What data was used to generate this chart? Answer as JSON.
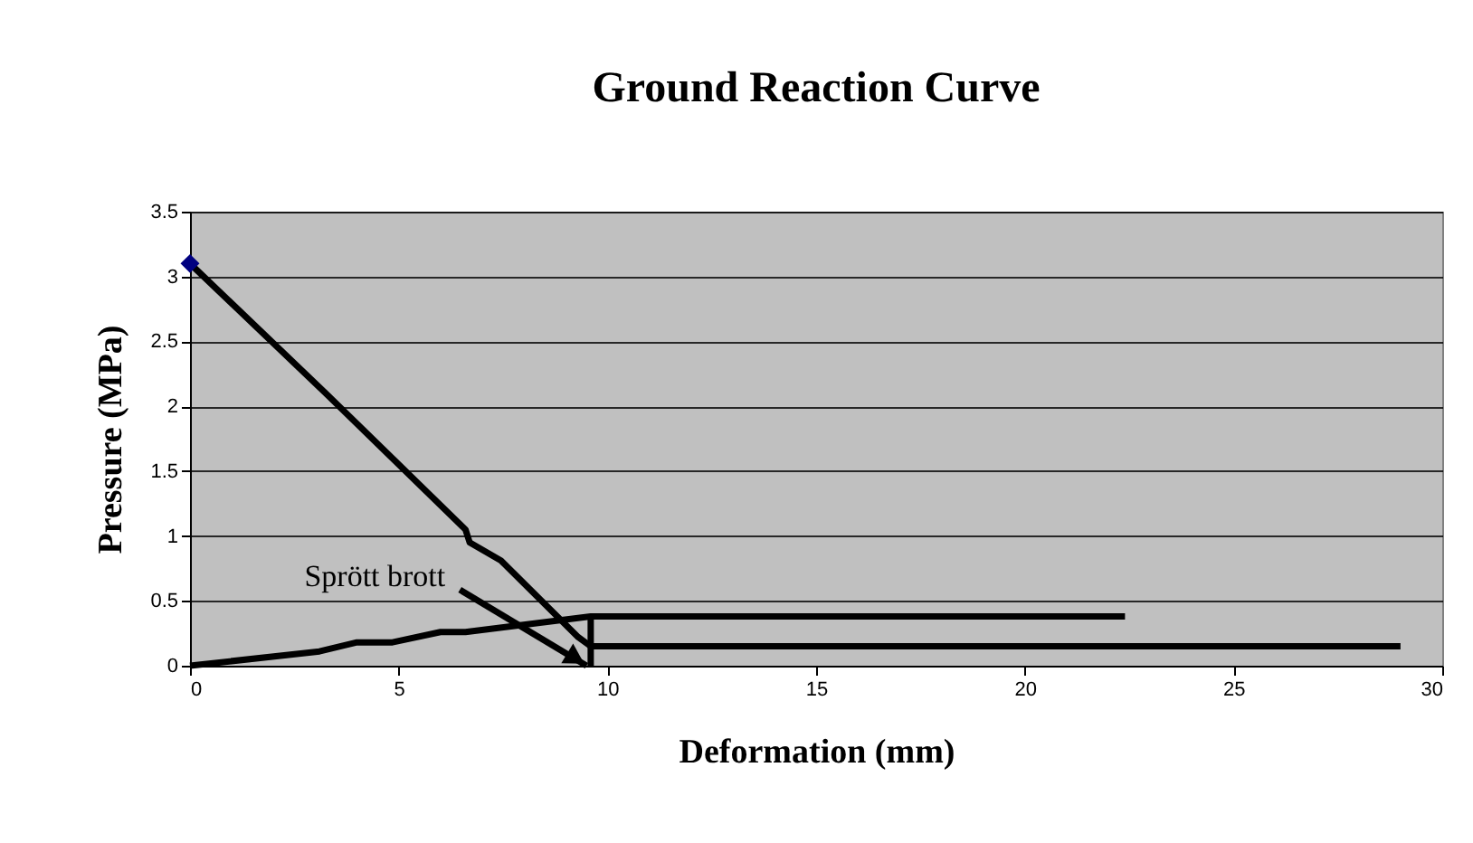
{
  "chart_data": {
    "type": "line",
    "title": "Ground Reaction Curve",
    "xlabel": "Deformation (mm)",
    "ylabel": "Pressure (MPa)",
    "xlim": [
      0,
      30
    ],
    "xticks": [
      0,
      5,
      10,
      15,
      20,
      25,
      30
    ],
    "ylim": [
      0,
      3.5
    ],
    "yticks": [
      0,
      0.5,
      1,
      1.5,
      2,
      2.5,
      3,
      3.5
    ],
    "grid": "y",
    "line_style": "solid",
    "series": [
      {
        "color": "#000000",
        "x": [
          0,
          3.25,
          6.6,
          6.7,
          7.45,
          9.3,
          9.6,
          29
        ],
        "values": [
          3.1,
          2.1,
          1.05,
          0.95,
          0.81,
          0.22,
          0.15,
          0.15
        ]
      },
      {
        "color": "#000000",
        "x": [
          0,
          3.1,
          4.0,
          4.85,
          6.0,
          6.6,
          9.6,
          22.4
        ],
        "values": [
          0,
          0.11,
          0.18,
          0.18,
          0.26,
          0.26,
          0.38,
          0.38
        ]
      },
      {
        "color": "#000000",
        "x": [
          9.6,
          9.6
        ],
        "values": [
          0,
          0.38
        ]
      },
      {
        "type": "scatter",
        "marker": "diamond",
        "color": "#000080",
        "x": [
          0
        ],
        "values": [
          3.1
        ]
      }
    ],
    "annotations": [
      {
        "text": "Sprött brott",
        "x": 9.5,
        "y": 0
      }
    ]
  }
}
